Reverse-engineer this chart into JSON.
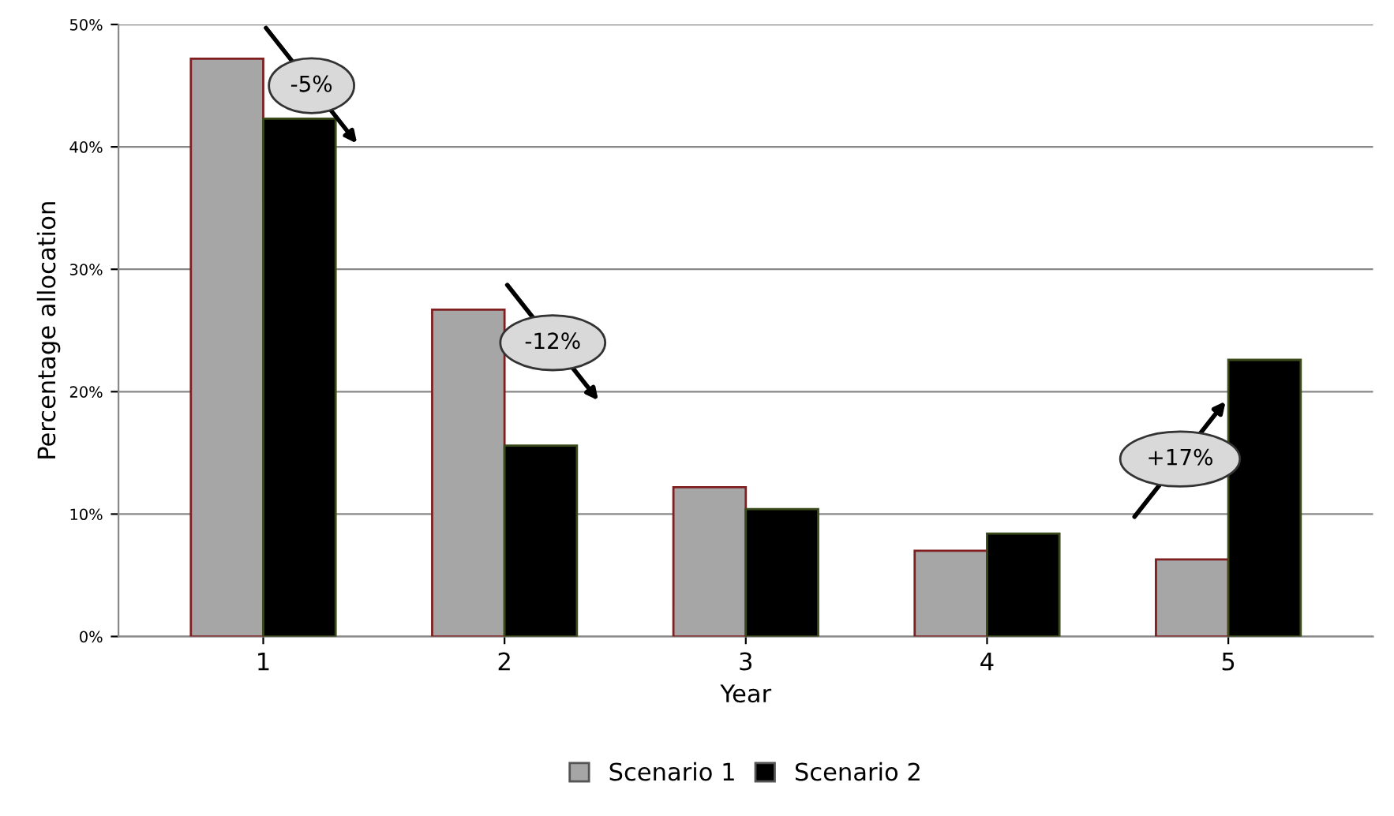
{
  "chart_data": {
    "type": "bar",
    "xlabel": "Year",
    "ylabel": "Percentage allocation",
    "categories": [
      "1",
      "2",
      "3",
      "4",
      "5"
    ],
    "series": [
      {
        "name": "Scenario 1",
        "color": "#a6a6a6",
        "values": [
          47.2,
          26.7,
          12.2,
          7.0,
          6.3
        ]
      },
      {
        "name": "Scenario 2",
        "color": "#000000",
        "values": [
          42.3,
          15.6,
          10.4,
          8.4,
          22.6
        ]
      }
    ],
    "ylim": [
      0,
      50
    ],
    "yticks": [
      {
        "value": 0,
        "label": "0%"
      },
      {
        "value": 10,
        "label": "10%"
      },
      {
        "value": 20,
        "label": "20%"
      },
      {
        "value": 30,
        "label": "30%"
      },
      {
        "value": 40,
        "label": "40%"
      },
      {
        "value": 50,
        "label": "50%"
      }
    ],
    "grid": "y",
    "legend": "bottom",
    "annotations": [
      {
        "text": "-5%",
        "x": "1",
        "y": 45
      },
      {
        "text": "-12%",
        "x": "2",
        "y": 24
      },
      {
        "text": "+17%",
        "x": "5",
        "y": 14.5
      }
    ]
  }
}
